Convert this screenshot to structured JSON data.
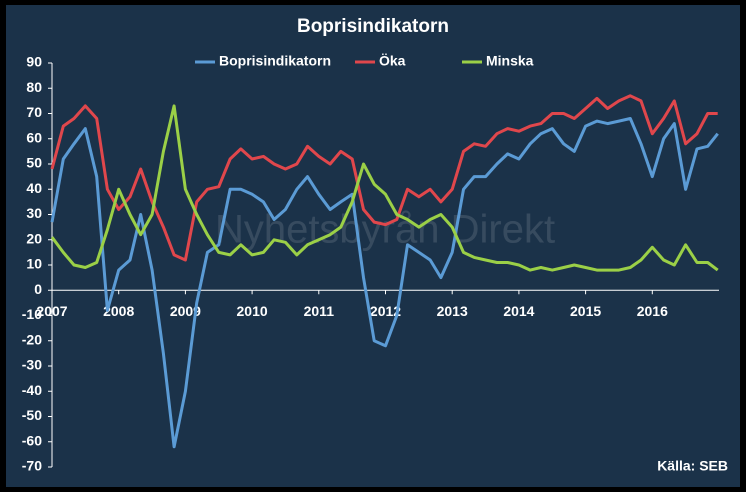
{
  "chart_data": {
    "type": "line",
    "title": "Boprisindikatorn",
    "source": "Källa: SEB",
    "watermark": "Nyhetsbyrån Direkt",
    "x": [
      2007.0,
      2007.17,
      2007.33,
      2007.5,
      2007.67,
      2007.83,
      2008.0,
      2008.17,
      2008.33,
      2008.5,
      2008.67,
      2008.83,
      2009.0,
      2009.17,
      2009.33,
      2009.5,
      2009.67,
      2009.83,
      2010.0,
      2010.17,
      2010.33,
      2010.5,
      2010.67,
      2010.83,
      2011.0,
      2011.17,
      2011.33,
      2011.5,
      2011.67,
      2011.83,
      2012.0,
      2012.17,
      2012.33,
      2012.5,
      2012.67,
      2012.83,
      2013.0,
      2013.17,
      2013.33,
      2013.5,
      2013.67,
      2013.83,
      2014.0,
      2014.17,
      2014.33,
      2014.5,
      2014.67,
      2014.83,
      2015.0,
      2015.17,
      2015.33,
      2015.5,
      2015.67,
      2015.83,
      2016.0,
      2016.17,
      2016.33,
      2016.5,
      2016.67,
      2016.83,
      2016.98
    ],
    "series": [
      {
        "name": "Boprisindikatorn",
        "color": "#5b9bd5",
        "values": [
          27,
          52,
          58,
          64,
          45,
          -8,
          8,
          12,
          30,
          8,
          -25,
          -62,
          -40,
          -5,
          15,
          18,
          40,
          40,
          38,
          35,
          28,
          32,
          40,
          45,
          38,
          32,
          35,
          38,
          5,
          -20,
          -22,
          -10,
          18,
          15,
          12,
          5,
          15,
          40,
          45,
          45,
          50,
          54,
          52,
          58,
          62,
          64,
          58,
          55,
          65,
          67,
          66,
          67,
          68,
          58,
          45,
          60,
          66,
          40,
          56,
          57,
          62
        ]
      },
      {
        "name": "Öka",
        "color": "#e0474c",
        "values": [
          48,
          65,
          68,
          73,
          68,
          40,
          32,
          37,
          48,
          35,
          25,
          14,
          12,
          35,
          40,
          41,
          52,
          56,
          52,
          53,
          50,
          48,
          50,
          57,
          53,
          50,
          55,
          52,
          32,
          27,
          26,
          28,
          40,
          37,
          40,
          35,
          40,
          55,
          58,
          57,
          62,
          64,
          63,
          65,
          66,
          70,
          70,
          68,
          72,
          76,
          72,
          75,
          77,
          75,
          62,
          68,
          75,
          58,
          62,
          70,
          70
        ]
      },
      {
        "name": "Minska",
        "color": "#9bd047",
        "values": [
          21,
          15,
          10,
          9,
          11,
          24,
          40,
          30,
          22,
          30,
          55,
          73,
          40,
          30,
          22,
          15,
          14,
          18,
          14,
          15,
          20,
          19,
          14,
          18,
          20,
          22,
          25,
          35,
          50,
          42,
          38,
          30,
          28,
          25,
          28,
          30,
          25,
          15,
          13,
          12,
          11,
          11,
          10,
          8,
          9,
          8,
          9,
          10,
          9,
          8,
          8,
          8,
          9,
          12,
          17,
          12,
          10,
          18,
          11,
          11,
          8
        ]
      }
    ],
    "xlim": [
      2007,
      2017
    ],
    "xticks": [
      2007,
      2008,
      2009,
      2010,
      2011,
      2012,
      2013,
      2014,
      2015,
      2016
    ],
    "ylim": [
      -70,
      90
    ],
    "yticks": [
      -70,
      -60,
      -50,
      -40,
      -30,
      -20,
      -10,
      0,
      10,
      20,
      30,
      40,
      50,
      60,
      70,
      80,
      90
    ],
    "grid": false
  }
}
